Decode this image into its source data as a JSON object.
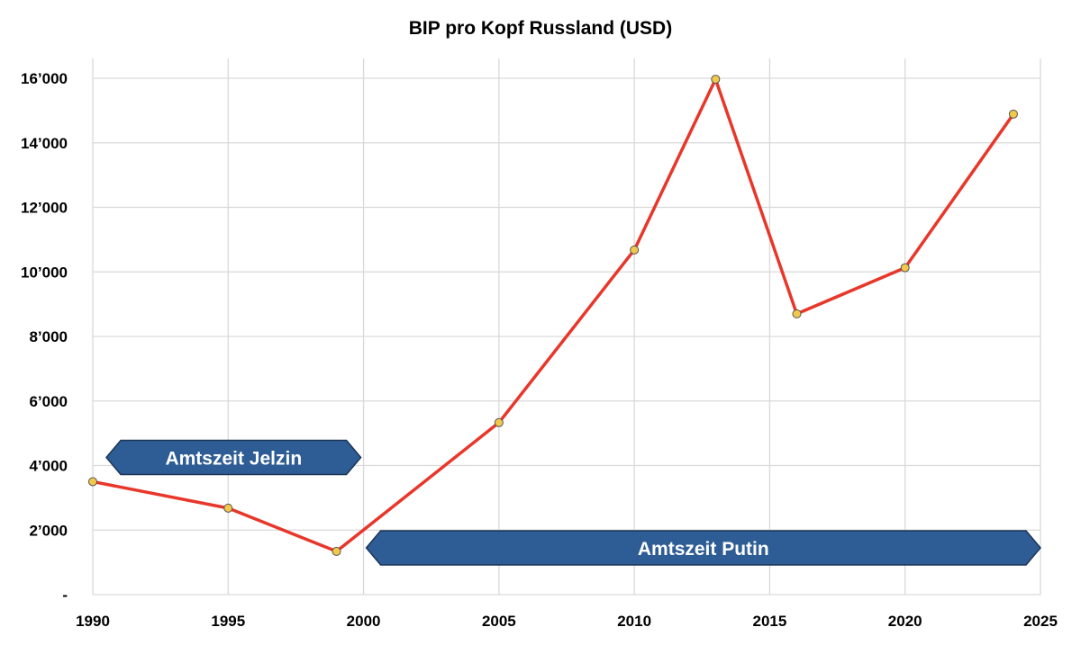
{
  "chart_data": {
    "type": "line",
    "title": "BIP pro Kopf Russland (USD)",
    "xlabel": "",
    "ylabel": "",
    "xlim": [
      1990,
      2025
    ],
    "ylim": [
      0,
      16000
    ],
    "grid": true,
    "x_ticks": [
      1990,
      1995,
      2000,
      2005,
      2010,
      2015,
      2020,
      2025
    ],
    "x_tick_labels": [
      "1990",
      "1995",
      "2000",
      "2005",
      "2010",
      "2015",
      "2020",
      "2025"
    ],
    "y_ticks": [
      0,
      2000,
      4000,
      6000,
      8000,
      10000,
      12000,
      14000,
      16000
    ],
    "y_tick_labels": [
      "-",
      "2’000",
      "4’000",
      "6’000",
      "8’000",
      "10’000",
      "12’000",
      "14’000",
      "16’000"
    ],
    "series": [
      {
        "x": [
          1990,
          1995,
          1999,
          2005,
          2010,
          2013,
          2016,
          2020,
          2024
        ],
        "y": [
          3500,
          2680,
          1340,
          5330,
          10680,
          15970,
          8700,
          10130,
          14890
        ],
        "line_color": "#e8372a",
        "marker_color": "#f2c84b"
      }
    ],
    "annotations": [
      {
        "text": "Amtszeit Jelzin",
        "x_start": 1990.5,
        "x_end": 1999.9,
        "y": 4250,
        "color": "#2e5c94"
      },
      {
        "text": "Amtszeit Putin",
        "x_start": 2000.1,
        "x_end": 2025,
        "y": 1450,
        "color": "#2e5c94"
      }
    ]
  }
}
